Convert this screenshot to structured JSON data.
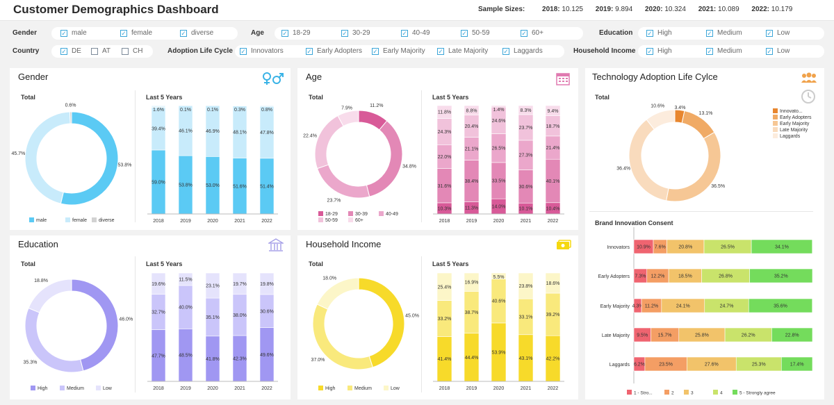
{
  "header": {
    "title": "Customer Demographics Dashboard",
    "sample_label": "Sample Sizes:",
    "samples": [
      {
        "year": "2018:",
        "value": "10.125"
      },
      {
        "year": "2019:",
        "value": "9.894"
      },
      {
        "year": "2020:",
        "value": "10.324"
      },
      {
        "year": "2021:",
        "value": "10.089"
      },
      {
        "year": "2022:",
        "value": "10.179"
      }
    ]
  },
  "filters": {
    "gender": {
      "label": "Gender",
      "options": [
        {
          "label": "male",
          "checked": true
        },
        {
          "label": "female",
          "checked": true
        },
        {
          "label": "diverse",
          "checked": true
        }
      ]
    },
    "age": {
      "label": "Age",
      "options": [
        {
          "label": "18-29",
          "checked": true
        },
        {
          "label": "30-29",
          "checked": true
        },
        {
          "label": "40-49",
          "checked": true
        },
        {
          "label": "50-59",
          "checked": true
        },
        {
          "label": "60+",
          "checked": true
        }
      ]
    },
    "education": {
      "label": "Education",
      "options": [
        {
          "label": "High",
          "checked": true
        },
        {
          "label": "Medium",
          "checked": true
        },
        {
          "label": "Low",
          "checked": true
        }
      ]
    },
    "country": {
      "label": "Country",
      "options": [
        {
          "label": "DE",
          "checked": true
        },
        {
          "label": "AT",
          "checked": false
        },
        {
          "label": "CH",
          "checked": false
        }
      ]
    },
    "adoption": {
      "label": "Adoption Life Cycle",
      "options": [
        {
          "label": "Innovators",
          "checked": true
        },
        {
          "label": "Early Adopters",
          "checked": true
        },
        {
          "label": "Early Majority",
          "checked": true
        },
        {
          "label": "Late Majority",
          "checked": true
        },
        {
          "label": "Laggards",
          "checked": true
        }
      ]
    },
    "income": {
      "label": "Household Income",
      "options": [
        {
          "label": "High",
          "checked": true
        },
        {
          "label": "Medium",
          "checked": true
        },
        {
          "label": "Low",
          "checked": true
        }
      ]
    }
  },
  "cards": {
    "gender": {
      "title": "Gender",
      "icon": "gender-icon",
      "total_label": "Total",
      "last5_label": "Last 5 Years"
    },
    "age": {
      "title": "Age",
      "icon": "calendar-icon",
      "total_label": "Total",
      "last5_label": "Last 5 Years"
    },
    "education": {
      "title": "Education",
      "icon": "building-icon",
      "total_label": "Total",
      "last5_label": "Last 5 Years"
    },
    "income": {
      "title": "Household Income",
      "icon": "money-icon",
      "total_label": "Total",
      "last5_label": "Last 5 Years"
    },
    "tech": {
      "title": "Technology Adoption Life Cylce",
      "icon": "people-icon",
      "total_label": "Total",
      "consent_label": "Brand Innovation Consent"
    }
  },
  "chart_data": [
    {
      "id": "gender-donut",
      "type": "pie",
      "title": "Total",
      "categories": [
        "male",
        "female",
        "diverse"
      ],
      "values": [
        53.8,
        45.7,
        0.6
      ],
      "labels": [
        "53.8%",
        "45.7%",
        "0.6%"
      ],
      "colors": [
        "#5bcaf4",
        "#c8ebfb",
        "#d2d2d2"
      ],
      "legend": "bottom"
    },
    {
      "id": "gender-bars",
      "type": "bar",
      "stacked": true,
      "title": "Last 5 Years",
      "categories": [
        "2018",
        "2019",
        "2020",
        "2021",
        "2022"
      ],
      "series": [
        {
          "name": "male",
          "values": [
            59.0,
            53.8,
            53.0,
            51.6,
            51.4
          ],
          "labels": [
            "59.0%",
            "53.8%",
            "53.0%",
            "51.6%",
            "51.4%"
          ],
          "color": "#5bcaf4"
        },
        {
          "name": "female",
          "values": [
            39.4,
            46.1,
            46.9,
            48.1,
            47.8
          ],
          "labels": [
            "39.4%",
            "46.1%",
            "46.9%",
            "48.1%",
            "47.8%"
          ],
          "color": "#c8ebfb"
        },
        {
          "name": "diverse",
          "values": [
            1.6,
            0.1,
            0.1,
            0.3,
            0.8
          ],
          "labels": [
            "1.6%",
            "0.1%",
            "0.1%",
            "0.3%",
            "0.8%"
          ],
          "color": "#e3f5fd"
        }
      ],
      "ylim": [
        0,
        100
      ]
    },
    {
      "id": "age-donut",
      "type": "pie",
      "title": "Total",
      "categories": [
        "18-29",
        "30-39",
        "40-49",
        "50-59",
        "60+"
      ],
      "values": [
        11.2,
        34.8,
        23.7,
        22.4,
        7.9
      ],
      "labels": [
        "11.2%",
        "34.8%",
        "23.7%",
        "22.4%",
        "7.9%"
      ],
      "colors": [
        "#d85a98",
        "#e388b6",
        "#eba7cb",
        "#f1c2db",
        "#f8dceb"
      ],
      "legend": "bottom"
    },
    {
      "id": "age-bars",
      "type": "bar",
      "stacked": true,
      "title": "Last 5 Years",
      "categories": [
        "2018",
        "2019",
        "2020",
        "2021",
        "2022"
      ],
      "series": [
        {
          "name": "18-29",
          "values": [
            10.3,
            11.3,
            14.0,
            10.1,
            10.4
          ],
          "labels": [
            "10.3%",
            "11.3%",
            "14.0%",
            "10.1%",
            "10.4%"
          ],
          "color": "#d85a98"
        },
        {
          "name": "30-39",
          "values": [
            31.6,
            38.4,
            33.5,
            30.6,
            40.1
          ],
          "labels": [
            "31.6%",
            "38.4%",
            "33.5%",
            "30.6%",
            "40.1%"
          ],
          "color": "#e388b6"
        },
        {
          "name": "40-49",
          "values": [
            22.0,
            21.1,
            26.5,
            27.3,
            21.4
          ],
          "labels": [
            "22.0%",
            "21.1%",
            "26.5%",
            "27.3%",
            "21.4%"
          ],
          "color": "#eba7cb"
        },
        {
          "name": "50-59",
          "values": [
            24.3,
            20.4,
            24.6,
            23.7,
            18.7
          ],
          "labels": [
            "24.3%",
            "20.4%",
            "24.6%",
            "23.7%",
            "18.7%"
          ],
          "color": "#f1c2db"
        },
        {
          "name": "60+",
          "values": [
            11.8,
            8.8,
            1.4,
            8.3,
            9.4
          ],
          "labels": [
            "11.8%",
            "8.8%",
            "1.4%",
            "8.3%",
            "9.4%"
          ],
          "color": "#f8dceb"
        }
      ],
      "ylim": [
        0,
        100
      ]
    },
    {
      "id": "edu-donut",
      "type": "pie",
      "title": "Total",
      "categories": [
        "High",
        "Medium",
        "Low"
      ],
      "values": [
        46.0,
        35.3,
        18.8
      ],
      "labels": [
        "46.0%",
        "35.3%",
        "18.8%"
      ],
      "colors": [
        "#a097f2",
        "#cac5fa",
        "#e5e3fc"
      ],
      "legend": "bottom"
    },
    {
      "id": "edu-bars",
      "type": "bar",
      "stacked": true,
      "title": "Last 5 Years",
      "categories": [
        "2018",
        "2019",
        "2020",
        "2021",
        "2022"
      ],
      "series": [
        {
          "name": "High",
          "values": [
            47.7,
            48.5,
            41.8,
            42.3,
            49.6
          ],
          "labels": [
            "47.7%",
            "48.5%",
            "41.8%",
            "42.3%",
            "49.6%"
          ],
          "color": "#a097f2"
        },
        {
          "name": "Medium",
          "values": [
            32.7,
            40.0,
            35.1,
            38.0,
            30.6
          ],
          "labels": [
            "32.7%",
            "40.0%",
            "35.1%",
            "38.0%",
            "30.6%"
          ],
          "color": "#cac5fa"
        },
        {
          "name": "Low",
          "values": [
            19.6,
            11.5,
            23.1,
            19.7,
            19.8
          ],
          "labels": [
            "19.6%",
            "11.5%",
            "23.1%",
            "19.7%",
            "19.8%"
          ],
          "color": "#e5e3fc"
        }
      ],
      "ylim": [
        0,
        100
      ]
    },
    {
      "id": "income-donut",
      "type": "pie",
      "title": "Total",
      "categories": [
        "High",
        "Medium",
        "Low"
      ],
      "values": [
        45.0,
        37.0,
        18.0
      ],
      "labels": [
        "45.0%",
        "37.0%",
        "18.0%"
      ],
      "colors": [
        "#f7da2a",
        "#f9e97c",
        "#fcf6c8"
      ],
      "legend": "bottom"
    },
    {
      "id": "income-bars",
      "type": "bar",
      "stacked": true,
      "title": "Last 5 Years",
      "categories": [
        "2018",
        "2019",
        "2020",
        "2021",
        "2022"
      ],
      "series": [
        {
          "name": "High",
          "values": [
            41.4,
            44.4,
            53.9,
            43.1,
            42.2
          ],
          "labels": [
            "41.4%",
            "44.4%",
            "53.9%",
            "43.1%",
            "42.2%"
          ],
          "color": "#f7da2a"
        },
        {
          "name": "Medium",
          "values": [
            33.2,
            38.7,
            40.6,
            33.1,
            39.2
          ],
          "labels": [
            "33.2%",
            "38.7%",
            "40.6%",
            "33.1%",
            "39.2%"
          ],
          "color": "#f9e97c"
        },
        {
          "name": "Low",
          "values": [
            25.4,
            16.9,
            5.5,
            23.8,
            18.6
          ],
          "labels": [
            "25.4%",
            "16.9%",
            "5.5%",
            "23.8%",
            "18.6%"
          ],
          "color": "#fcf6c8"
        }
      ],
      "ylim": [
        0,
        100
      ]
    },
    {
      "id": "tech-donut",
      "type": "pie",
      "title": "Total",
      "categories": [
        "Innovato...",
        "Early Adopters",
        "Early Majority",
        "Late Majority",
        "Laggards"
      ],
      "values": [
        3.4,
        13.1,
        36.5,
        36.4,
        10.6
      ],
      "labels": [
        "3.4%",
        "13.1%",
        "36.5%",
        "36.4%",
        "10.6%"
      ],
      "colors": [
        "#e8862e",
        "#f0aa65",
        "#f6c795",
        "#f9dbbd",
        "#fcecdd"
      ],
      "legend": "right"
    },
    {
      "id": "consent-bars",
      "type": "bar",
      "orientation": "horizontal",
      "stacked": true,
      "title": "Brand Innovation Consent",
      "categories": [
        "Innovators",
        "Early Adopters",
        "Early Majority",
        "Late Majority",
        "Laggards"
      ],
      "series": [
        {
          "name": "1 - Stro...",
          "values": [
            10.9,
            7.3,
            4.3,
            9.5,
            6.2
          ],
          "labels": [
            "10.9%",
            "7.3%",
            "4.3%",
            "9.5%",
            "6.2%"
          ],
          "color": "#ef6470"
        },
        {
          "name": "2",
          "values": [
            7.6,
            12.2,
            11.2,
            15.7,
            23.5
          ],
          "labels": [
            "7.6%",
            "12.2%",
            "11.2%",
            "15.7%",
            "23.5%"
          ],
          "color": "#f49e64"
        },
        {
          "name": "3",
          "values": [
            20.8,
            18.5,
            24.1,
            25.8,
            27.6
          ],
          "labels": [
            "20.8%",
            "18.5%",
            "24.1%",
            "25.8%",
            "27.6%"
          ],
          "color": "#f2c36a"
        },
        {
          "name": "4",
          "values": [
            26.5,
            26.8,
            24.7,
            26.2,
            25.3
          ],
          "labels": [
            "26.5%",
            "26.8%",
            "24.7%",
            "26.2%",
            "25.3%"
          ],
          "color": "#c9e36b"
        },
        {
          "name": "5 - Strongly agree",
          "values": [
            34.1,
            35.2,
            35.6,
            22.8,
            17.4
          ],
          "labels": [
            "34.1%",
            "35.2%",
            "35.6%",
            "22.8%",
            "17.4%"
          ],
          "color": "#74dc5c"
        }
      ],
      "xlim": [
        0,
        100
      ],
      "legend": "bottom"
    }
  ]
}
